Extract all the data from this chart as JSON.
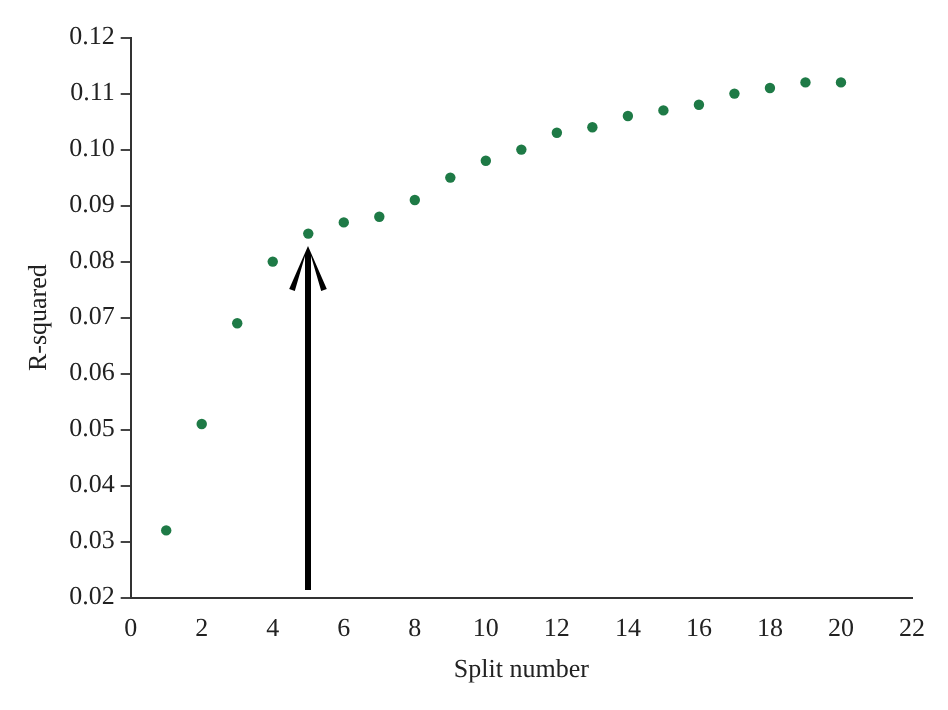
{
  "chart_data": {
    "type": "scatter",
    "xlabel": "Split number",
    "ylabel": "R-squared",
    "x": [
      1,
      2,
      3,
      4,
      5,
      6,
      7,
      8,
      9,
      10,
      11,
      12,
      13,
      14,
      15,
      16,
      17,
      18,
      19,
      20
    ],
    "series": [
      {
        "color": "#1e7a46",
        "values": [
          0.032,
          0.051,
          0.069,
          0.08,
          0.085,
          0.087,
          0.088,
          0.091,
          0.095,
          0.098,
          0.1,
          0.103,
          0.104,
          0.106,
          0.107,
          0.108,
          0.11,
          0.111,
          0.112,
          0.112
        ]
      }
    ],
    "xlim": [
      0,
      22
    ],
    "xticks": [
      0,
      2,
      4,
      6,
      8,
      10,
      12,
      14,
      16,
      18,
      20,
      22
    ],
    "ylim": [
      0.02,
      0.12
    ],
    "yticks": [
      0.02,
      0.03,
      0.04,
      0.05,
      0.06,
      0.07,
      0.08,
      0.09,
      {
        "value": 0.1,
        "label": "0.10"
      },
      0.11,
      0.12
    ],
    "grid": false,
    "legend": false,
    "marker": "circle"
  }
}
